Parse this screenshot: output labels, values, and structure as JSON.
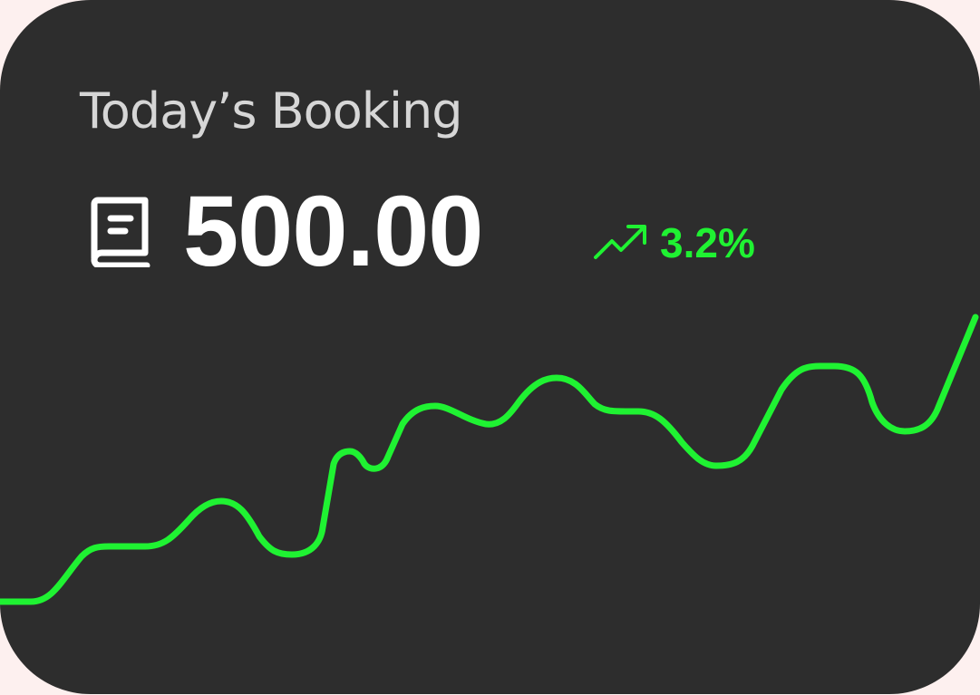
{
  "card": {
    "title": "Today’s Booking",
    "value": "500.00",
    "change": "3.2%",
    "icons": {
      "metric": "book-icon",
      "trend": "trending-up-icon"
    }
  },
  "colors": {
    "background": "#fdf0ef",
    "card": "#2d2d2d",
    "title": "#d6d6d6",
    "value": "#ffffff",
    "accent": "#1ff232"
  },
  "chart_data": {
    "type": "line",
    "values": [
      0,
      12,
      12,
      23,
      11,
      34,
      32,
      43,
      40,
      52,
      44,
      31,
      52,
      40,
      55
    ]
  }
}
